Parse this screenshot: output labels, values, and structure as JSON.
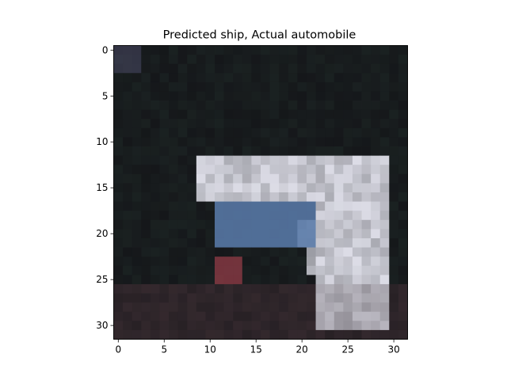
{
  "chart_data": {
    "type": "heatmap",
    "title": "Predicted ship, Actual automobile",
    "xlabel": "",
    "ylabel": "",
    "x_ticks": [
      "0",
      "5",
      "10",
      "15",
      "20",
      "25",
      "30"
    ],
    "y_ticks": [
      "0",
      "5",
      "10",
      "15",
      "20",
      "25",
      "30"
    ],
    "xlim": [
      -0.5,
      31.5
    ],
    "ylim": [
      31.5,
      -0.5
    ],
    "grid": false,
    "image": {
      "rows": 32,
      "cols": 32,
      "description_colors": {
        "background": "#15171a",
        "car_body": "#dcdce6",
        "windshield": "#5a7cac",
        "red_detail": "#8a3a44",
        "shadow": "#3a2a30"
      }
    }
  }
}
